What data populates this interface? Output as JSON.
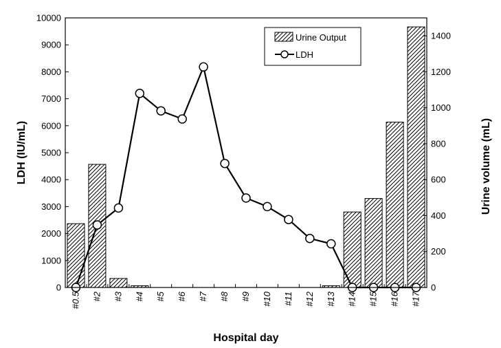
{
  "chart_data": {
    "type": "bar+line",
    "categories": [
      "#0.5",
      "#2",
      "#3",
      "#4",
      "#5",
      "#6",
      "#7",
      "#8",
      "#9",
      "#10",
      "#11",
      "#12",
      "#13",
      "#14",
      "#15",
      "#16",
      "#17"
    ],
    "series": [
      {
        "name": "Urine Output",
        "type": "bar",
        "axis": "right",
        "values": [
          355,
          685,
          50,
          10,
          null,
          null,
          null,
          null,
          null,
          null,
          null,
          null,
          10,
          420,
          495,
          920,
          1450
        ]
      },
      {
        "name": "LDH",
        "type": "line",
        "axis": "left",
        "values": [
          0,
          2320,
          2950,
          7200,
          6550,
          6250,
          8180,
          4600,
          3320,
          3000,
          2520,
          1820,
          1620,
          0,
          0,
          0,
          0
        ]
      }
    ],
    "xlabel": "Hospital day",
    "ylabel": "LDH (IU/mL)",
    "y2label": "Urine volume (mL)",
    "ylim": [
      0,
      10000
    ],
    "y2lim": [
      0,
      1500
    ],
    "yticks": [
      0,
      1000,
      2000,
      3000,
      4000,
      5000,
      6000,
      7000,
      8000,
      9000,
      10000
    ],
    "y2ticks": [
      0,
      200,
      400,
      600,
      800,
      1000,
      1200,
      1400
    ],
    "legend": {
      "position": "top-right",
      "items": [
        "Urine Output",
        "LDH"
      ]
    },
    "grid": false
  }
}
